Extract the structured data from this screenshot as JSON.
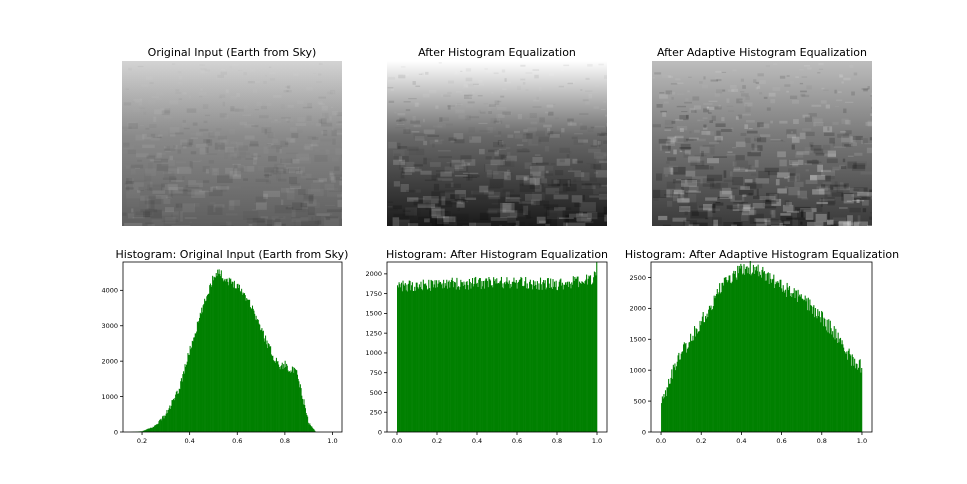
{
  "panels": [
    {
      "title": "Original Input (Earth from Sky)",
      "photo_tone": {
        "base": "#8a8a8a",
        "top": "#d4d4d4",
        "bottom": "#5e5e5e",
        "contrast": 0.35
      }
    },
    {
      "title": "After Histogram Equalization",
      "photo_tone": {
        "base": "#6a6a6a",
        "top": "#ffffff",
        "bottom": "#1a1a1a",
        "contrast": 0.65
      }
    },
    {
      "title": "After Adaptive Histogram Equalization",
      "photo_tone": {
        "base": "#7a7a7a",
        "top": "#bdbdbd",
        "bottom": "#3a3a3a",
        "contrast": 1.0
      }
    }
  ],
  "chart_data": [
    {
      "type": "bar",
      "title": "Histogram: Original Input (Earth from Sky)",
      "color": "#008000",
      "xlim": [
        0.12,
        1.04
      ],
      "ylim": [
        0,
        4800
      ],
      "xticks": [
        0.2,
        0.4,
        0.6,
        0.8,
        1.0
      ],
      "xtick_labels": [
        "0.2",
        "0.4",
        "0.6",
        "0.8",
        "1.0"
      ],
      "yticks": [
        0,
        1000,
        2000,
        3000,
        4000
      ],
      "ytick_labels": [
        "0",
        "1000",
        "2000",
        "3000",
        "4000"
      ],
      "profile_x": [
        0.15,
        0.2,
        0.25,
        0.3,
        0.35,
        0.4,
        0.45,
        0.5,
        0.52,
        0.55,
        0.6,
        0.65,
        0.7,
        0.75,
        0.78,
        0.8,
        0.85,
        0.88,
        0.9,
        0.93
      ],
      "profile_y": [
        0,
        20,
        150,
        500,
        1100,
        2300,
        3400,
        4400,
        4550,
        4300,
        4150,
        3700,
        2900,
        2150,
        1850,
        1900,
        1650,
        800,
        250,
        0
      ]
    },
    {
      "type": "bar",
      "title": "Histogram: After Histogram Equalization",
      "color": "#008000",
      "xlim": [
        -0.05,
        1.05
      ],
      "ylim": [
        0,
        2150
      ],
      "xticks": [
        0.0,
        0.2,
        0.4,
        0.6,
        0.8,
        1.0
      ],
      "xtick_labels": [
        "0.0",
        "0.2",
        "0.4",
        "0.6",
        "0.8",
        "1.0"
      ],
      "yticks": [
        0,
        250,
        500,
        750,
        1000,
        1250,
        1500,
        1750,
        2000
      ],
      "ytick_labels": [
        "0",
        "250",
        "500",
        "750",
        "1000",
        "1250",
        "1500",
        "1750",
        "2000"
      ],
      "profile_x": [
        0.0,
        0.2,
        0.5,
        0.8,
        0.97,
        1.0
      ],
      "profile_y": [
        1830,
        1870,
        1890,
        1870,
        1920,
        2080
      ]
    },
    {
      "type": "bar",
      "title": "Histogram: After Adaptive Histogram Equalization",
      "color": "#008000",
      "xlim": [
        -0.05,
        1.05
      ],
      "ylim": [
        0,
        2750
      ],
      "xticks": [
        0.0,
        0.2,
        0.4,
        0.6,
        0.8,
        1.0
      ],
      "xtick_labels": [
        "0.0",
        "0.2",
        "0.4",
        "0.6",
        "0.8",
        "1.0"
      ],
      "yticks": [
        0,
        500,
        1000,
        1500,
        2000,
        2500
      ],
      "ytick_labels": [
        "0",
        "500",
        "1000",
        "1500",
        "2000",
        "2500"
      ],
      "profile_x": [
        0.0,
        0.05,
        0.1,
        0.2,
        0.3,
        0.4,
        0.45,
        0.5,
        0.6,
        0.7,
        0.8,
        0.9,
        0.95,
        1.0
      ],
      "profile_y": [
        450,
        900,
        1250,
        1800,
        2350,
        2630,
        2650,
        2570,
        2350,
        2150,
        1850,
        1450,
        1150,
        1050
      ]
    }
  ]
}
